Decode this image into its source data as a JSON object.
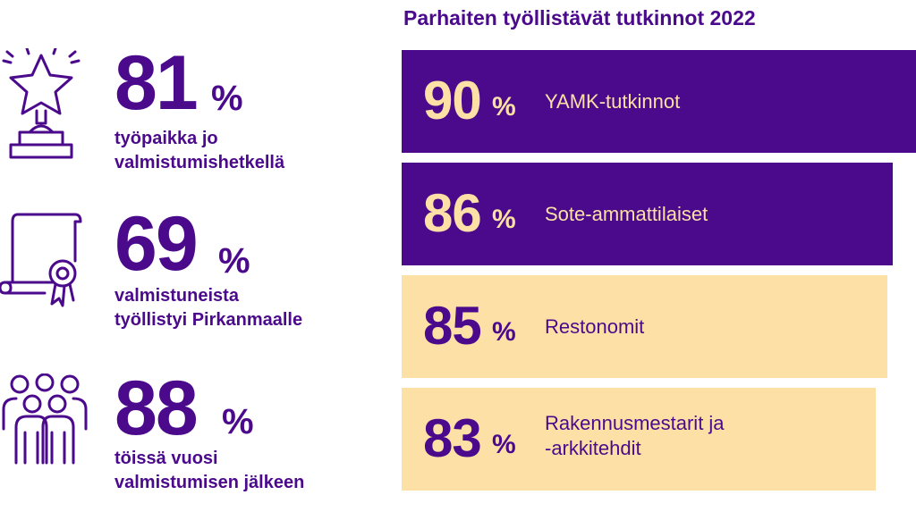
{
  "colors": {
    "purple": "#4b0a8c",
    "peach": "#fde0a6",
    "peach_text": "#fde0a6"
  },
  "stats": [
    {
      "value": "81",
      "unit": "%",
      "description": "työpaikka jo\nvalmistumishetkellä",
      "icon": "trophy-star-icon"
    },
    {
      "value": "69",
      "unit": "%",
      "description": "valmistuneista\ntyöllistyi Pirkanmaalle",
      "icon": "diploma-certificate-icon"
    },
    {
      "value": "88",
      "unit": "%",
      "description": "töissä vuosi\nvalmistumisen jälkeen",
      "icon": "people-group-icon"
    }
  ],
  "chart_data": {
    "type": "bar",
    "orientation": "horizontal",
    "title": "Parhaiten työllistävät tutkinnot 2022",
    "categories": [
      "YAMK-tutkinnot",
      "Sote-ammattilaiset",
      "Restonomit",
      "Rakennusmestarit ja\n-arkkitehdit"
    ],
    "values": [
      90,
      86,
      85,
      83
    ],
    "value_labels": [
      "90",
      "86",
      "85",
      "83"
    ],
    "unit": "%",
    "bar_colors": [
      "#4b0a8c",
      "#4b0a8c",
      "#fde0a6",
      "#fde0a6"
    ],
    "text_colors": [
      "#fde0a6",
      "#fde0a6",
      "#4b0a8c",
      "#4b0a8c"
    ]
  }
}
